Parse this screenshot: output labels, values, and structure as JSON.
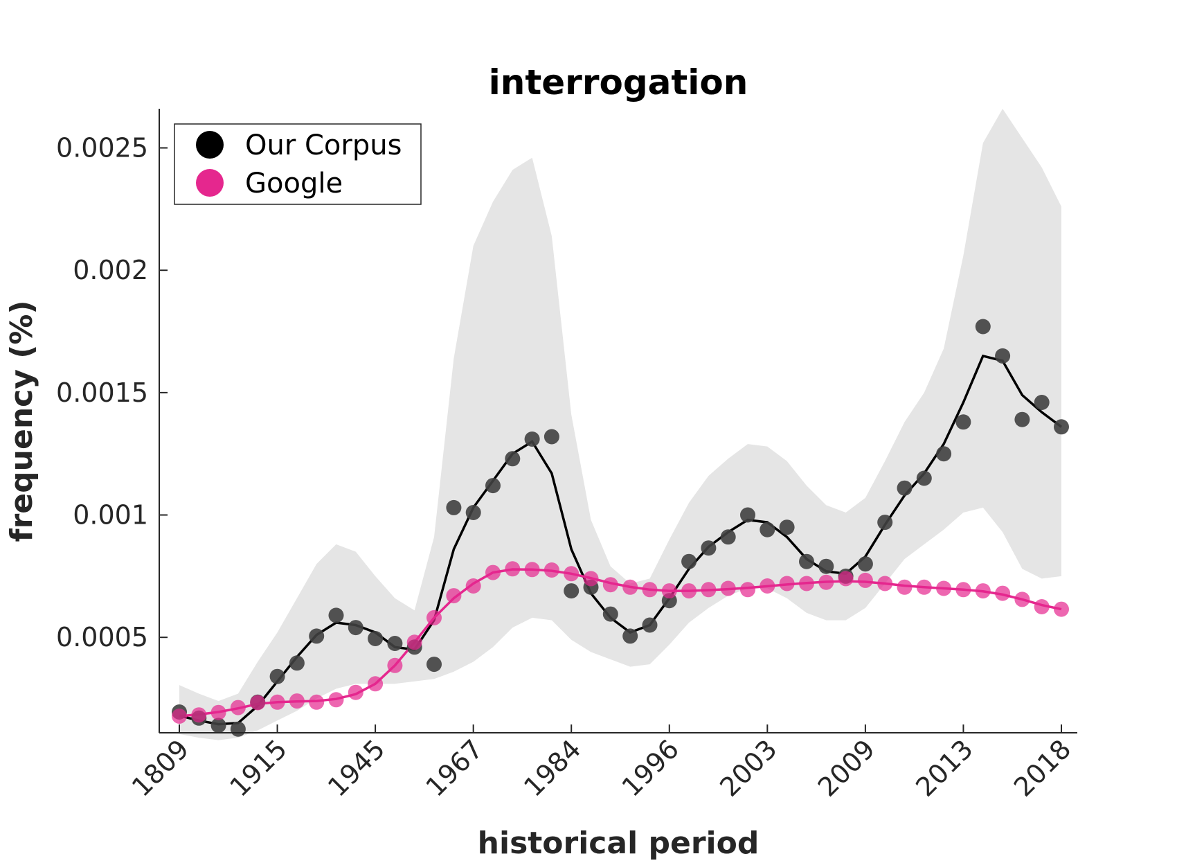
{
  "chart_data": {
    "type": "scatter",
    "title": "interrogation",
    "xlabel": "historical period",
    "ylabel": "frequency (%)",
    "x_tick_labels": [
      "1809",
      "1915",
      "1945",
      "1967",
      "1984",
      "1996",
      "2003",
      "2009",
      "2013",
      "2018"
    ],
    "y_ticks": [
      0.0005,
      0.001,
      0.0015,
      0.002,
      0.0025
    ],
    "y_tick_labels": [
      "0.0005",
      "0.001",
      "0.0015",
      "0.002",
      "0.0025"
    ],
    "ylim": [
      0.00011,
      0.00266
    ],
    "grid": false,
    "legend": {
      "position": "top-left",
      "entries": [
        "Our Corpus",
        "Google"
      ]
    },
    "series": [
      {
        "name": "Our Corpus",
        "color": "#404040",
        "line_color": "#000000",
        "points": [
          0.000195,
          0.00017,
          0.00014,
          0.000125,
          0.000235,
          0.00034,
          0.000395,
          0.000505,
          0.00059,
          0.00054,
          0.000495,
          0.000475,
          0.00046,
          0.00039,
          0.00103,
          0.00101,
          0.00112,
          0.00123,
          0.00131,
          0.00132,
          0.00069,
          0.000705,
          0.000595,
          0.000505,
          0.00055,
          0.00065,
          0.00081,
          0.000865,
          0.00091,
          0.001,
          0.00094,
          0.00095,
          0.00081,
          0.00079,
          0.00075,
          0.0008,
          0.00097,
          0.00111,
          0.00115,
          0.00125,
          0.00138,
          0.00177,
          0.00165,
          0.00139,
          0.00146,
          0.00136
        ],
        "smooth": [
          0.00018,
          0.00016,
          0.000145,
          0.00015,
          0.00022,
          0.00032,
          0.00042,
          0.00051,
          0.00056,
          0.00055,
          0.00052,
          0.00046,
          0.00045,
          0.00057,
          0.00086,
          0.00103,
          0.00114,
          0.00125,
          0.0013,
          0.00117,
          0.00086,
          0.00068,
          0.00058,
          0.00052,
          0.00055,
          0.00066,
          0.00078,
          0.00087,
          0.00093,
          0.00098,
          0.00097,
          0.00091,
          0.00082,
          0.00077,
          0.00076,
          0.00083,
          0.00096,
          0.00108,
          0.00117,
          0.00129,
          0.00146,
          0.00165,
          0.00163,
          0.00149,
          0.00142,
          0.00136
        ],
        "band_upper": [
          0.000305,
          0.00027,
          0.00024,
          0.00027,
          0.0004,
          0.00052,
          0.00066,
          0.0008,
          0.00088,
          0.00085,
          0.00075,
          0.00066,
          0.00061,
          0.00091,
          0.00164,
          0.0021,
          0.00228,
          0.00241,
          0.00246,
          0.00214,
          0.00141,
          0.00098,
          0.00079,
          0.00072,
          0.00074,
          0.0009,
          0.00105,
          0.00116,
          0.00123,
          0.00129,
          0.00128,
          0.00122,
          0.00112,
          0.00104,
          0.00101,
          0.00107,
          0.00122,
          0.00138,
          0.0015,
          0.00168,
          0.00206,
          0.00252,
          0.00266,
          0.00254,
          0.00242,
          0.00226
        ],
        "band_lower": [
          0.000105,
          9e-05,
          8e-05,
          9e-05,
          0.00012,
          0.00016,
          0.0002,
          0.00025,
          0.00029,
          0.00031,
          0.00031,
          0.00031,
          0.00032,
          0.00033,
          0.00036,
          0.0004,
          0.00046,
          0.00054,
          0.00058,
          0.00057,
          0.00049,
          0.00044,
          0.00041,
          0.00038,
          0.00039,
          0.00047,
          0.00056,
          0.00062,
          0.00067,
          0.0007,
          0.0007,
          0.00066,
          0.0006,
          0.00057,
          0.00057,
          0.00062,
          0.00072,
          0.00082,
          0.00088,
          0.00094,
          0.00101,
          0.00103,
          0.00093,
          0.00078,
          0.00074,
          0.00075
        ]
      },
      {
        "name": "Google",
        "color": "#e5278e",
        "line_color": "#e5278e",
        "points": [
          0.000178,
          0.000183,
          0.000193,
          0.000213,
          0.000233,
          0.000235,
          0.00024,
          0.000235,
          0.000245,
          0.000275,
          0.00031,
          0.000385,
          0.00048,
          0.00058,
          0.00067,
          0.00071,
          0.000765,
          0.00078,
          0.000777,
          0.000775,
          0.00076,
          0.00074,
          0.000715,
          0.000705,
          0.000695,
          0.00069,
          0.00069,
          0.000695,
          0.0007,
          0.000695,
          0.00071,
          0.00072,
          0.00072,
          0.000725,
          0.00074,
          0.000733,
          0.00072,
          0.000705,
          0.000705,
          0.0007,
          0.000695,
          0.00069,
          0.00068,
          0.000655,
          0.000625,
          0.000615
        ],
        "smooth": [
          0.000178,
          0.000185,
          0.000195,
          0.00021,
          0.000228,
          0.000235,
          0.000238,
          0.00024,
          0.000248,
          0.000268,
          0.00031,
          0.000385,
          0.00048,
          0.00058,
          0.00066,
          0.00072,
          0.000765,
          0.000778,
          0.000777,
          0.000772,
          0.00076,
          0.000742,
          0.000722,
          0.000706,
          0.000695,
          0.00069,
          0.00069,
          0.000693,
          0.000697,
          0.000702,
          0.000709,
          0.000716,
          0.000722,
          0.000727,
          0.000729,
          0.000727,
          0.00072,
          0.000711,
          0.000705,
          0.0007,
          0.000695,
          0.000688,
          0.000675,
          0.000655,
          0.000632,
          0.000615
        ]
      }
    ]
  }
}
